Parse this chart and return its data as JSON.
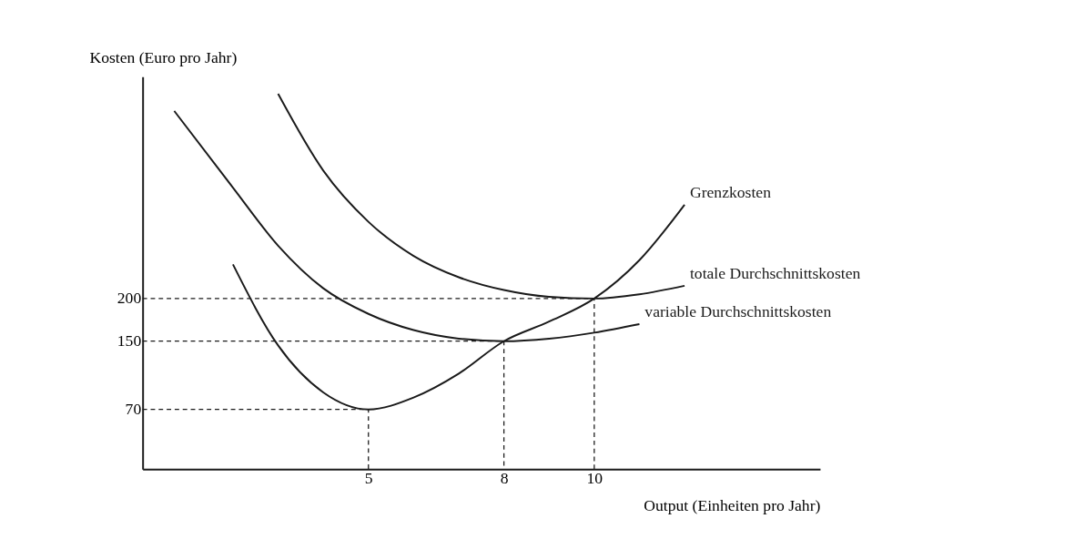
{
  "chart_data": {
    "type": "line",
    "xlabel": "Output (Einheiten pro Jahr)",
    "ylabel": "Kosten (Euro pro Jahr)",
    "xlim": [
      0,
      15
    ],
    "ylim": [
      0,
      460
    ],
    "xticks": [
      5,
      8,
      10
    ],
    "yticks": [
      70,
      150,
      200
    ],
    "grid": false,
    "marker": "none",
    "series": [
      {
        "name": "Grenzkosten",
        "color": "#1a1a1a",
        "line_style": "solid",
        "x": [
          2,
          3,
          4,
          5,
          6,
          7,
          8,
          9,
          10,
          11,
          12
        ],
        "values": [
          240,
          145,
          90,
          70,
          84,
          112,
          150,
          173,
          200,
          245,
          310
        ]
      },
      {
        "name": "variable Durchschnittskosten",
        "color": "#1a1a1a",
        "line_style": "solid",
        "x": [
          0.7,
          2,
          3,
          4,
          5,
          6,
          7,
          8,
          9,
          10,
          11
        ],
        "values": [
          420,
          330,
          262,
          212,
          182,
          163,
          153,
          150,
          153,
          160,
          170
        ]
      },
      {
        "name": "totale Durchschnittskosten",
        "color": "#1a1a1a",
        "line_style": "solid",
        "x": [
          3,
          4,
          5,
          6,
          7,
          8,
          9,
          10,
          11,
          12
        ],
        "values": [
          440,
          350,
          290,
          250,
          225,
          210,
          202,
          200,
          205,
          215
        ]
      },
      {
        "color": "#1a1a1a",
        "line_style": "dashed",
        "x": [
          0,
          5,
          5
        ],
        "values": [
          70,
          70,
          0
        ]
      },
      {
        "color": "#1a1a1a",
        "line_style": "dashed",
        "x": [
          0,
          8,
          8
        ],
        "values": [
          150,
          150,
          0
        ]
      },
      {
        "color": "#1a1a1a",
        "line_style": "dashed",
        "x": [
          0,
          10,
          10
        ],
        "values": [
          200,
          200,
          0
        ]
      }
    ]
  }
}
